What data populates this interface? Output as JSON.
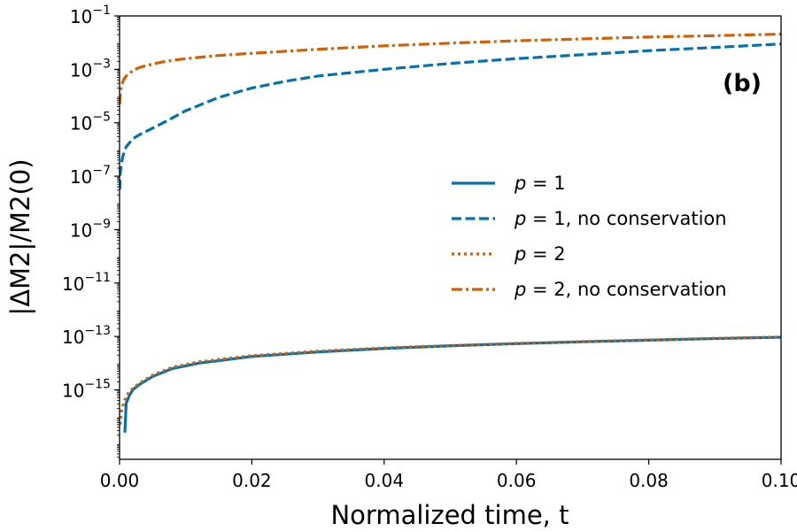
{
  "chart_data": {
    "type": "line",
    "panel_label": "(b)",
    "xlabel": "Normalized time, t",
    "ylabel": "|ΔM2|/M2(0)",
    "xlim": [
      0.0,
      0.1
    ],
    "ylim_log10": [
      -17.6,
      -1
    ],
    "yscale": "log",
    "x_ticks": [
      0.0,
      0.02,
      0.04,
      0.06,
      0.08,
      0.1
    ],
    "x_tick_labels": [
      "0.00",
      "0.02",
      "0.04",
      "0.06",
      "0.08",
      "0.10"
    ],
    "y_ticks_log10": [
      -15,
      -13,
      -11,
      -9,
      -7,
      -5,
      -3,
      -1
    ],
    "legend": {
      "placement": "center-right",
      "entries": [
        {
          "series": "p1",
          "label_tex_var": "p",
          "label_rest": " = 1"
        },
        {
          "series": "p1nc",
          "label_tex_var": "p",
          "label_rest": " = 1, no conservation"
        },
        {
          "series": "p2",
          "label_tex_var": "p",
          "label_rest": " = 2"
        },
        {
          "series": "p2nc",
          "label_tex_var": "p",
          "label_rest": " = 2, no conservation"
        }
      ]
    },
    "series": [
      {
        "id": "p1",
        "name": "p = 1",
        "color": "#0072B2",
        "style": "solid",
        "x": [
          0.0008,
          0.001,
          0.0015,
          0.002,
          0.003,
          0.005,
          0.008,
          0.012,
          0.02,
          0.03,
          0.04,
          0.05,
          0.06,
          0.07,
          0.08,
          0.09,
          0.1
        ],
        "log10_y": [
          -16.6,
          -15.5,
          -15.2,
          -15.0,
          -14.8,
          -14.5,
          -14.2,
          -14.0,
          -13.75,
          -13.58,
          -13.45,
          -13.35,
          -13.27,
          -13.2,
          -13.14,
          -13.08,
          -13.03
        ]
      },
      {
        "id": "p1nc",
        "name": "p = 1, no conservation",
        "color": "#0072B2",
        "style": "dashed",
        "x": [
          3e-05,
          0.0001,
          0.0003,
          0.0005,
          0.001,
          0.002,
          0.003,
          0.005,
          0.007,
          0.01,
          0.015,
          0.02,
          0.025,
          0.03,
          0.04,
          0.05,
          0.06,
          0.07,
          0.08,
          0.09,
          0.1
        ],
        "log10_y": [
          -7.5,
          -6.9,
          -6.5,
          -6.25,
          -5.9,
          -5.6,
          -5.45,
          -5.2,
          -4.95,
          -4.55,
          -4.05,
          -3.7,
          -3.45,
          -3.25,
          -3.0,
          -2.78,
          -2.6,
          -2.45,
          -2.3,
          -2.18,
          -2.05
        ]
      },
      {
        "id": "p2",
        "name": "p = 2",
        "color": "#D55E00",
        "style": "dotted",
        "x": [
          0.0001,
          0.0003,
          0.0006,
          0.001,
          0.0015,
          0.002,
          0.003,
          0.005,
          0.008,
          0.012,
          0.02,
          0.03,
          0.04,
          0.05,
          0.06,
          0.07,
          0.08,
          0.09,
          0.1
        ],
        "log10_y": [
          -16.3,
          -15.8,
          -15.5,
          -15.25,
          -15.05,
          -14.95,
          -14.75,
          -14.45,
          -14.15,
          -13.95,
          -13.72,
          -13.55,
          -13.43,
          -13.34,
          -13.26,
          -13.19,
          -13.13,
          -13.07,
          -13.02
        ]
      },
      {
        "id": "p2nc",
        "name": "p = 2, no conservation",
        "color": "#D55E00",
        "style": "dashdot",
        "x": [
          2e-05,
          0.0001,
          0.0003,
          0.0006,
          0.001,
          0.002,
          0.003,
          0.005,
          0.007,
          0.01,
          0.015,
          0.02,
          0.03,
          0.04,
          0.05,
          0.06,
          0.07,
          0.08,
          0.09,
          0.1
        ],
        "log10_y": [
          -4.3,
          -3.9,
          -3.6,
          -3.4,
          -3.25,
          -3.05,
          -2.93,
          -2.8,
          -2.7,
          -2.6,
          -2.48,
          -2.4,
          -2.25,
          -2.12,
          -2.02,
          -1.93,
          -1.86,
          -1.79,
          -1.74,
          -1.68
        ]
      }
    ]
  }
}
